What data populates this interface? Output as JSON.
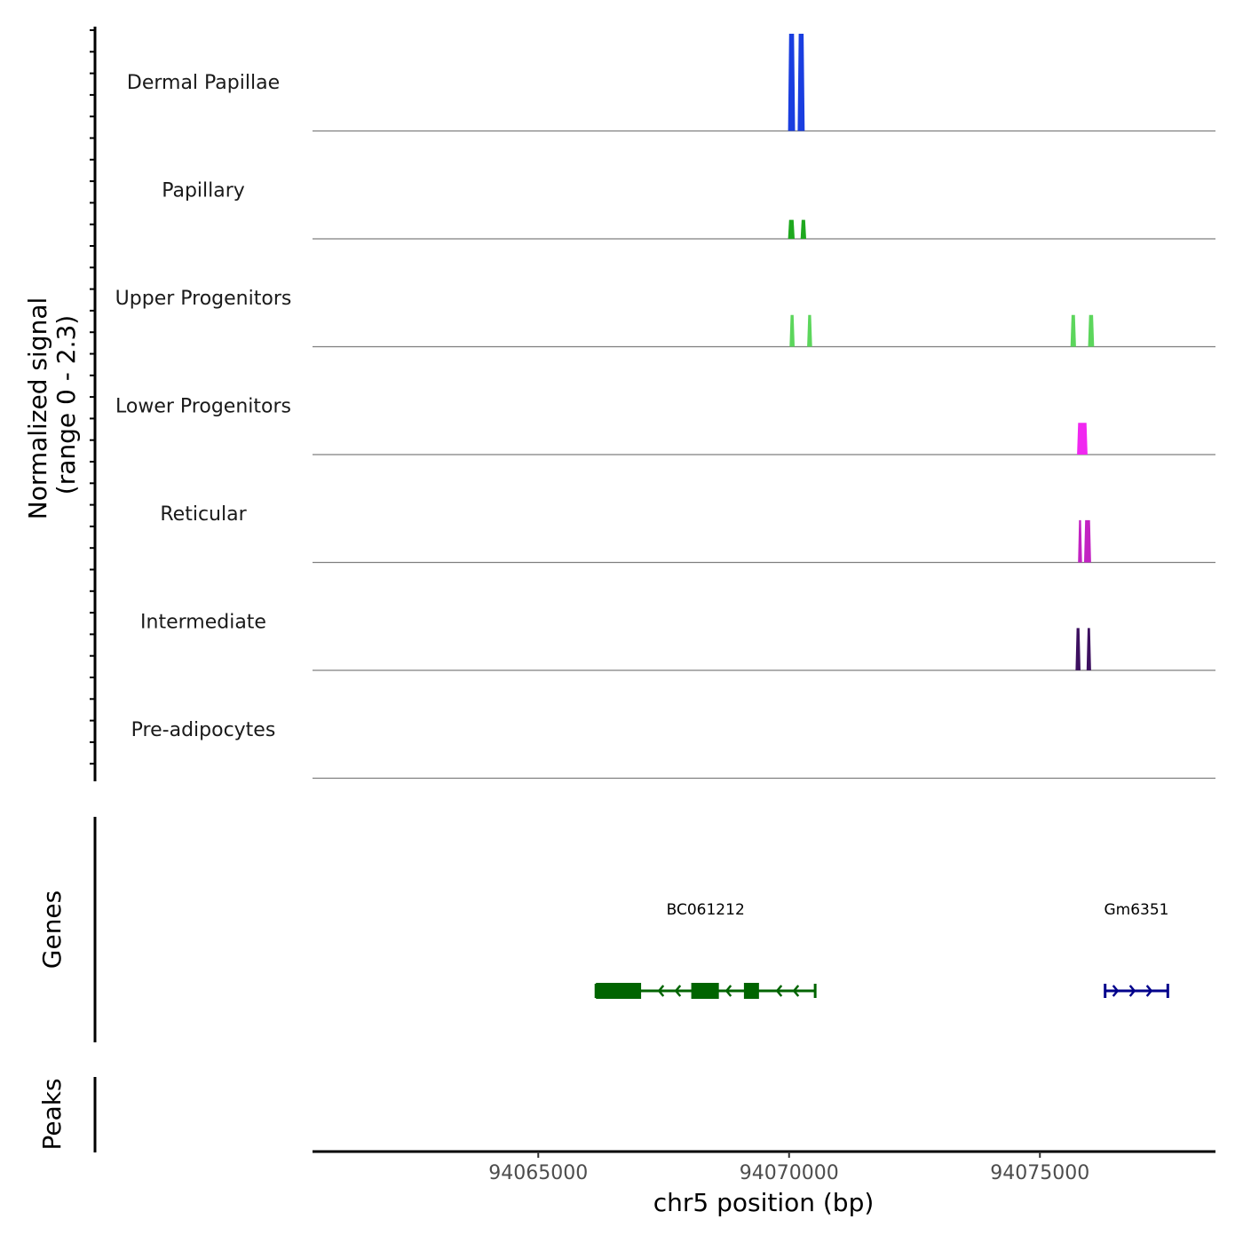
{
  "chart_data": {
    "type": "coverage",
    "chromosome": "chr5",
    "xlabel": "chr5 position (bp)",
    "xlim": [
      94060500,
      94078500
    ],
    "x_ticks": [
      94065000,
      94070000,
      94075000
    ],
    "x_tick_labels": [
      "94065000",
      "94070000",
      "94075000"
    ],
    "signal_axis_title": [
      "Normalized signal",
      "(range 0 - 2.3)"
    ],
    "signal_range": [
      0,
      2.3
    ],
    "tracks": [
      {
        "name": "Dermal Papillae",
        "color": "#1a3ee0",
        "peaks": [
          {
            "start": 94069980,
            "end": 94070120,
            "value": 2.3
          },
          {
            "start": 94070170,
            "end": 94070310,
            "value": 2.3
          }
        ]
      },
      {
        "name": "Papillary",
        "color": "#1ea81e",
        "peaks": [
          {
            "start": 94069980,
            "end": 94070110,
            "value": 0.45
          },
          {
            "start": 94070230,
            "end": 94070340,
            "value": 0.45
          }
        ]
      },
      {
        "name": "Upper Progenitors",
        "color": "#5cd65c",
        "peaks": [
          {
            "start": 94070010,
            "end": 94070110,
            "value": 0.75
          },
          {
            "start": 94070360,
            "end": 94070460,
            "value": 0.75
          },
          {
            "start": 94075610,
            "end": 94075720,
            "value": 0.75
          },
          {
            "start": 94075960,
            "end": 94076080,
            "value": 0.75
          }
        ]
      },
      {
        "name": "Lower Progenitors",
        "color": "#f028f0",
        "peaks": [
          {
            "start": 94075740,
            "end": 94075950,
            "value": 0.75
          }
        ]
      },
      {
        "name": "Reticular",
        "color": "#c222c2",
        "peaks": [
          {
            "start": 94075760,
            "end": 94075840,
            "value": 1.0
          },
          {
            "start": 94075880,
            "end": 94076020,
            "value": 1.0
          }
        ]
      },
      {
        "name": "Intermediate",
        "color": "#3d1060",
        "peaks": [
          {
            "start": 94075710,
            "end": 94075810,
            "value": 1.0
          },
          {
            "start": 94075930,
            "end": 94076020,
            "value": 1.0
          }
        ]
      },
      {
        "name": "Pre-adipocytes",
        "color": "#2e2e2e",
        "peaks": []
      }
    ],
    "genes_label": "Genes",
    "peaks_label": "Peaks",
    "genes": [
      {
        "name": "BC061212",
        "strand": "-",
        "color": "#006400",
        "start": 94066150,
        "end": 94070520,
        "exons": [
          [
            94066150,
            94067050
          ],
          [
            94068050,
            94068600
          ],
          [
            94069100,
            94069400
          ]
        ]
      },
      {
        "name": "Gm6351",
        "strand": "+",
        "color": "#00008b",
        "start": 94076300,
        "end": 94077550,
        "exons": []
      }
    ]
  }
}
